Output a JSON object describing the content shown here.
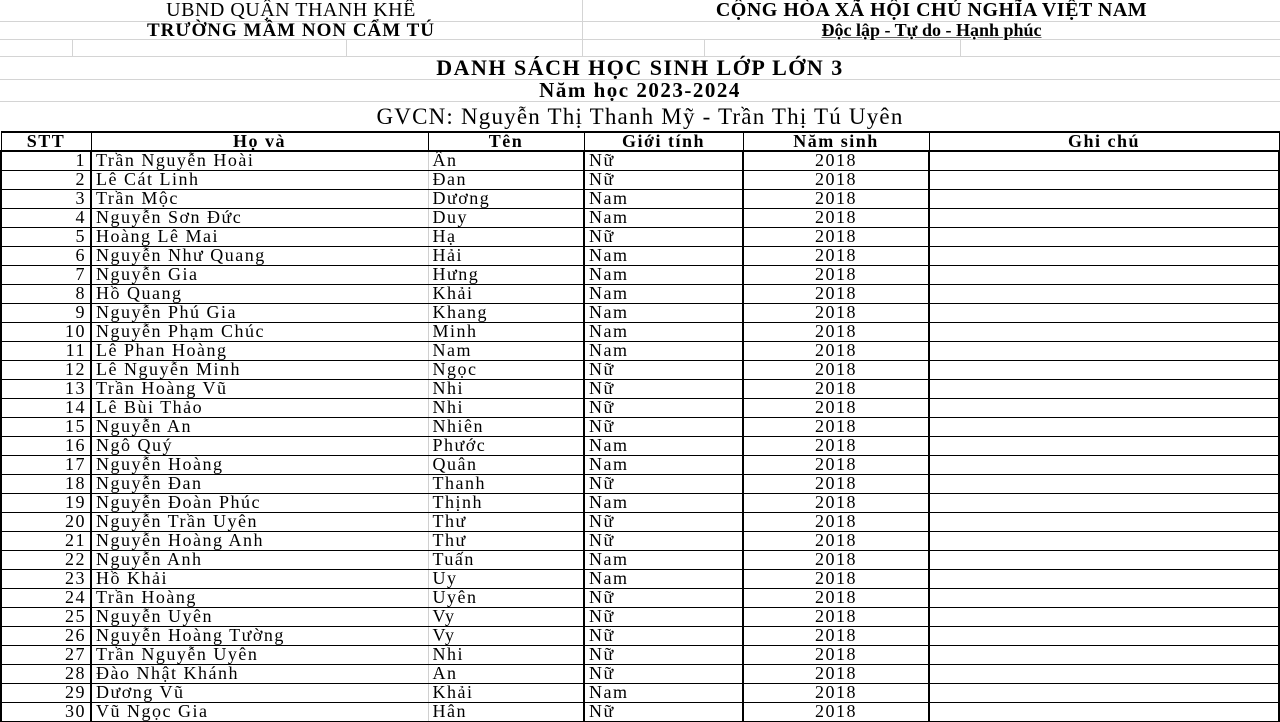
{
  "header": {
    "left_line1": "UBND QUẬN THANH KHÊ",
    "left_line2": "TRƯỜNG MẦM NON CẨM TÚ",
    "right_line1": "CỘNG HÒA XÃ HỘI CHỦ NGHĨA VIỆT NAM",
    "right_line2": "Độc lập - Tự do - Hạnh phúc"
  },
  "title": "DANH SÁCH HỌC SINH LỚP LỚN 3",
  "school_year": "Năm học 2023-2024",
  "teachers": "GVCN: Nguyễn Thị Thanh Mỹ - Trần Thị Tú Uyên",
  "table": {
    "columns": [
      "STT",
      "Họ và",
      "Tên",
      "Giới tính",
      "Năm sinh",
      "Ghi chú"
    ],
    "rows": [
      {
        "stt": "1",
        "ho": "Trần Nguyễn Hoài",
        "ten": "Ân",
        "gioi": "Nữ",
        "nam": "2018",
        "ghichu": ""
      },
      {
        "stt": "2",
        "ho": "Lê Cát Linh",
        "ten": "Đan",
        "gioi": "Nữ",
        "nam": "2018",
        "ghichu": ""
      },
      {
        "stt": "3",
        "ho": "Trần Mộc",
        "ten": "Dương",
        "gioi": "Nam",
        "nam": "2018",
        "ghichu": ""
      },
      {
        "stt": "4",
        "ho": "Nguyễn Sơn Đức",
        "ten": "Duy",
        "gioi": "Nam",
        "nam": "2018",
        "ghichu": ""
      },
      {
        "stt": "5",
        "ho": "Hoàng Lê Mai",
        "ten": "Hạ",
        "gioi": "Nữ",
        "nam": "2018",
        "ghichu": ""
      },
      {
        "stt": "6",
        "ho": "Nguyễn Như Quang",
        "ten": "Hải",
        "gioi": "Nam",
        "nam": "2018",
        "ghichu": ""
      },
      {
        "stt": "7",
        "ho": "Nguyễn Gia",
        "ten": "Hưng",
        "gioi": "Nam",
        "nam": "2018",
        "ghichu": ""
      },
      {
        "stt": "8",
        "ho": "Hồ Quang",
        "ten": "Khải",
        "gioi": "Nam",
        "nam": "2018",
        "ghichu": ""
      },
      {
        "stt": "9",
        "ho": "Nguyễn Phú Gia",
        "ten": "Khang",
        "gioi": "Nam",
        "nam": "2018",
        "ghichu": ""
      },
      {
        "stt": "10",
        "ho": "Nguyễn Phạm Chúc",
        "ten": "Minh",
        "gioi": "Nam",
        "nam": "2018",
        "ghichu": ""
      },
      {
        "stt": "11",
        "ho": "Lê Phan Hoàng",
        "ten": "Nam",
        "gioi": "Nam",
        "nam": "2018",
        "ghichu": ""
      },
      {
        "stt": "12",
        "ho": "Lê Nguyễn Minh",
        "ten": "Ngọc",
        "gioi": "Nữ",
        "nam": "2018",
        "ghichu": ""
      },
      {
        "stt": "13",
        "ho": "Trần Hoàng Vũ",
        "ten": "Nhi",
        "gioi": "Nữ",
        "nam": "2018",
        "ghichu": ""
      },
      {
        "stt": "14",
        "ho": "Lê Bùi Thảo",
        "ten": "Nhi",
        "gioi": "Nữ",
        "nam": "2018",
        "ghichu": ""
      },
      {
        "stt": "15",
        "ho": "Nguyễn An",
        "ten": "Nhiên",
        "gioi": "Nữ",
        "nam": "2018",
        "ghichu": ""
      },
      {
        "stt": "16",
        "ho": "Ngô Quý",
        "ten": "Phước",
        "gioi": "Nam",
        "nam": "2018",
        "ghichu": ""
      },
      {
        "stt": "17",
        "ho": "Nguyễn Hoàng",
        "ten": "Quân",
        "gioi": "Nam",
        "nam": "2018",
        "ghichu": ""
      },
      {
        "stt": "18",
        "ho": "Nguyễn Đan",
        "ten": "Thanh",
        "gioi": "Nữ",
        "nam": "2018",
        "ghichu": ""
      },
      {
        "stt": "19",
        "ho": "Nguyễn Đoàn Phúc",
        "ten": "Thịnh",
        "gioi": "Nam",
        "nam": "2018",
        "ghichu": ""
      },
      {
        "stt": "20",
        "ho": "Nguyễn Trần Uyên",
        "ten": "Thư",
        "gioi": "Nữ",
        "nam": "2018",
        "ghichu": ""
      },
      {
        "stt": "21",
        "ho": "Nguyễn Hoàng Anh",
        "ten": "Thư",
        "gioi": "Nữ",
        "nam": "2018",
        "ghichu": ""
      },
      {
        "stt": "22",
        "ho": "Nguyễn Anh",
        "ten": "Tuấn",
        "gioi": "Nam",
        "nam": "2018",
        "ghichu": ""
      },
      {
        "stt": "23",
        "ho": "Hồ Khải",
        "ten": "Uy",
        "gioi": "Nam",
        "nam": "2018",
        "ghichu": ""
      },
      {
        "stt": "24",
        "ho": "Trần Hoàng",
        "ten": "Uyên",
        "gioi": "Nữ",
        "nam": "2018",
        "ghichu": ""
      },
      {
        "stt": "25",
        "ho": "Nguyễn Uyên",
        "ten": "Vy",
        "gioi": "Nữ",
        "nam": "2018",
        "ghichu": ""
      },
      {
        "stt": "26",
        "ho": "Nguyễn Hoàng Tường",
        "ten": "Vy",
        "gioi": "Nữ",
        "nam": "2018",
        "ghichu": ""
      },
      {
        "stt": "27",
        "ho": "Trần Nguyễn Uyên",
        "ten": "Nhi",
        "gioi": "Nữ",
        "nam": "2018",
        "ghichu": ""
      },
      {
        "stt": "28",
        "ho": "Đào Nhật Khánh",
        "ten": "An",
        "gioi": "Nữ",
        "nam": "2018",
        "ghichu": ""
      },
      {
        "stt": "29",
        "ho": "Dương Vũ",
        "ten": "Khải",
        "gioi": "Nam",
        "nam": "2018",
        "ghichu": ""
      },
      {
        "stt": "30",
        "ho": "Vũ Ngọc Gia",
        "ten": "Hân",
        "gioi": "Nữ",
        "nam": "2018",
        "ghichu": ""
      }
    ]
  }
}
